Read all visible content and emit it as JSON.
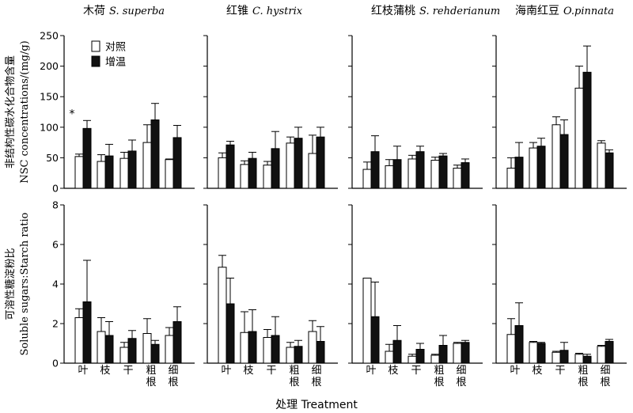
{
  "chart_data": {
    "type": "bar",
    "categories": [
      "叶",
      "枝",
      "干",
      "粗根",
      "细根"
    ],
    "panel_titles": [
      {
        "cn": "木荷",
        "latin": "S. superba"
      },
      {
        "cn": "红锥",
        "latin": "C. hystrix"
      },
      {
        "cn": "红枝蒲桃",
        "latin": "S. rehderianum"
      },
      {
        "cn": "海南红豆",
        "latin": "O.pinnata"
      }
    ],
    "legend": [
      "对照",
      "增温"
    ],
    "legend_colors": [
      "#ffffff",
      "#111111"
    ],
    "xlabel": "处理  Treatment",
    "rows": [
      {
        "ylabel_cn": "非结构性碳水化合物含量",
        "ylabel_en": "NSC concentrations/(mg/g)",
        "ylim": [
          0,
          250
        ],
        "yticks": [
          0,
          50,
          100,
          150,
          200,
          250
        ],
        "panels": [
          {
            "ctrl": [
              52,
              44,
              49,
              75,
              47
            ],
            "ctrl_err": [
              56,
              55,
              59,
              104,
              48
            ],
            "warm": [
              98,
              53,
              61,
              112,
              83
            ],
            "warm_err": [
              111,
              72,
              79,
              139,
              103
            ],
            "annotations": [
              {
                "category": "叶",
                "text": "*"
              }
            ]
          },
          {
            "ctrl": [
              50,
              39,
              38,
              74,
              57
            ],
            "ctrl_err": [
              58,
              45,
              44,
              84,
              87
            ],
            "warm": [
              71,
              49,
              65,
              82,
              84
            ],
            "warm_err": [
              77,
              59,
              93,
              100,
              100
            ],
            "annotations": []
          },
          {
            "ctrl": [
              31,
              37,
              48,
              46,
              33
            ],
            "ctrl_err": [
              43,
              47,
              54,
              51,
              38
            ],
            "warm": [
              60,
              47,
              60,
              53,
              42
            ],
            "warm_err": [
              86,
              69,
              69,
              57,
              48
            ],
            "annotations": []
          },
          {
            "ctrl": [
              33,
              66,
              104,
              164,
              74
            ],
            "ctrl_err": [
              50,
              75,
              117,
              200,
              78
            ],
            "warm": [
              51,
              69,
              88,
              190,
              58
            ],
            "warm_err": [
              75,
              82,
              112,
              233,
              63
            ],
            "annotations": []
          }
        ]
      },
      {
        "ylabel_cn": "可溶性糖淀粉比",
        "ylabel_en": "Soluble sugars:Starch ratio",
        "ylim": [
          0,
          8
        ],
        "yticks": [
          0,
          2,
          4,
          6,
          8
        ],
        "panels": [
          {
            "ctrl": [
              2.3,
              1.6,
              0.8,
              1.5,
              1.4
            ],
            "ctrl_err": [
              2.75,
              2.3,
              1.05,
              2.25,
              1.8
            ],
            "warm": [
              3.1,
              1.4,
              1.25,
              0.95,
              2.1
            ],
            "warm_err": [
              5.2,
              2.1,
              1.65,
              1.15,
              2.85
            ],
            "annotations": []
          },
          {
            "ctrl": [
              4.85,
              1.55,
              1.3,
              0.8,
              1.6
            ],
            "ctrl_err": [
              5.45,
              2.6,
              1.7,
              1.05,
              2.15
            ],
            "warm": [
              3.0,
              1.6,
              1.4,
              0.85,
              1.1
            ],
            "warm_err": [
              4.3,
              2.7,
              2.35,
              1.15,
              1.85
            ],
            "annotations": []
          },
          {
            "ctrl": [
              4.3,
              0.6,
              0.35,
              0.4,
              1.0
            ],
            "ctrl_err": [
              4.3,
              0.95,
              0.45,
              0.45,
              1.05
            ],
            "warm": [
              2.35,
              1.15,
              0.7,
              0.9,
              1.05
            ],
            "warm_err": [
              4.1,
              1.9,
              1.0,
              1.4,
              1.15
            ],
            "annotations": []
          },
          {
            "ctrl": [
              1.45,
              1.05,
              0.55,
              0.45,
              0.85
            ],
            "ctrl_err": [
              2.25,
              1.1,
              0.6,
              0.5,
              0.9
            ],
            "warm": [
              1.9,
              1.0,
              0.65,
              0.35,
              1.1
            ],
            "warm_err": [
              3.05,
              1.05,
              1.05,
              0.45,
              1.2
            ],
            "annotations": []
          }
        ]
      }
    ]
  }
}
